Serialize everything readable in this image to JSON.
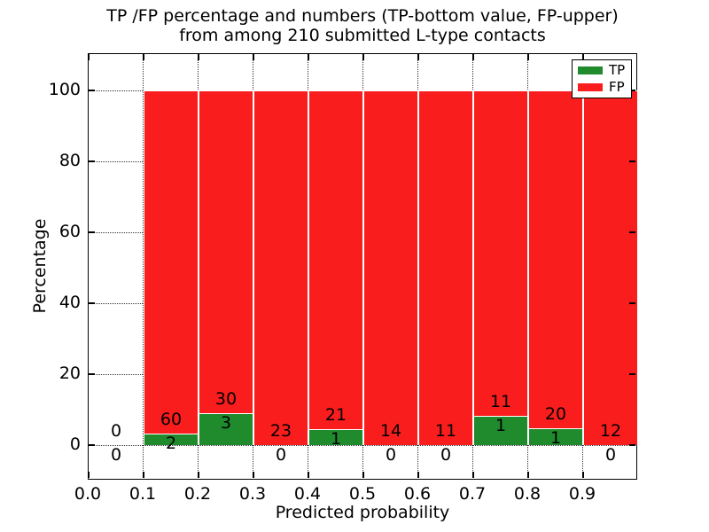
{
  "title": {
    "line1": "TP /FP percentage and numbers (TP-bottom value, FP-upper)",
    "line2": "from among 210 submitted L-type contacts"
  },
  "axes": {
    "xlabel": "Predicted probability",
    "ylabel": "Percentage",
    "xtick_labels": [
      "0.0",
      "0.1",
      "0.2",
      "0.3",
      "0.4",
      "0.5",
      "0.6",
      "0.7",
      "0.8",
      "0.9"
    ],
    "xtick_values": [
      0.0,
      0.1,
      0.2,
      0.3,
      0.4,
      0.5,
      0.6,
      0.7,
      0.8,
      0.9
    ],
    "ytick_labels": [
      "0",
      "20",
      "40",
      "60",
      "80",
      "100"
    ],
    "ytick_values": [
      0,
      20,
      40,
      60,
      80,
      100
    ],
    "xlim": [
      0.0,
      1.0
    ],
    "ylim": [
      -10,
      110
    ],
    "grid": "dotted"
  },
  "legend": {
    "position": "upper-right",
    "items": [
      {
        "label": "TP",
        "color": "#1f8b2c"
      },
      {
        "label": "FP",
        "color": "#fa1d1d"
      }
    ]
  },
  "chart_data": {
    "type": "bar",
    "stacked": true,
    "normalized_to_percent": true,
    "title": "TP /FP percentage and numbers (TP-bottom value, FP-upper) from among 210 submitted L-type contacts",
    "xlabel": "Predicted probability",
    "ylabel": "Percentage",
    "submitted_total": 210,
    "bin_edges": [
      0.0,
      0.1,
      0.2,
      0.3,
      0.4,
      0.5,
      0.6,
      0.7,
      0.8,
      0.9,
      1.0
    ],
    "categories": [
      "0.0-0.1",
      "0.1-0.2",
      "0.2-0.3",
      "0.3-0.4",
      "0.4-0.5",
      "0.5-0.6",
      "0.6-0.7",
      "0.7-0.8",
      "0.8-0.9",
      "0.9-1.0"
    ],
    "series": [
      {
        "name": "TP",
        "color": "#1f8b2c",
        "counts": [
          0,
          2,
          3,
          0,
          1,
          0,
          0,
          1,
          1,
          0
        ]
      },
      {
        "name": "FP",
        "color": "#fa1d1d",
        "counts": [
          0,
          60,
          30,
          23,
          21,
          14,
          11,
          11,
          20,
          12
        ]
      }
    ],
    "bar_total_percent": 100,
    "annotations_note": "FP count printed above TP count at the base of each bar"
  },
  "colors": {
    "tp": "#1f8b2c",
    "fp": "#fa1d1d",
    "grid": "#333333",
    "spine": "#000000",
    "bar_edge": "#ffffff",
    "background": "#ffffff",
    "text": "#000000"
  }
}
